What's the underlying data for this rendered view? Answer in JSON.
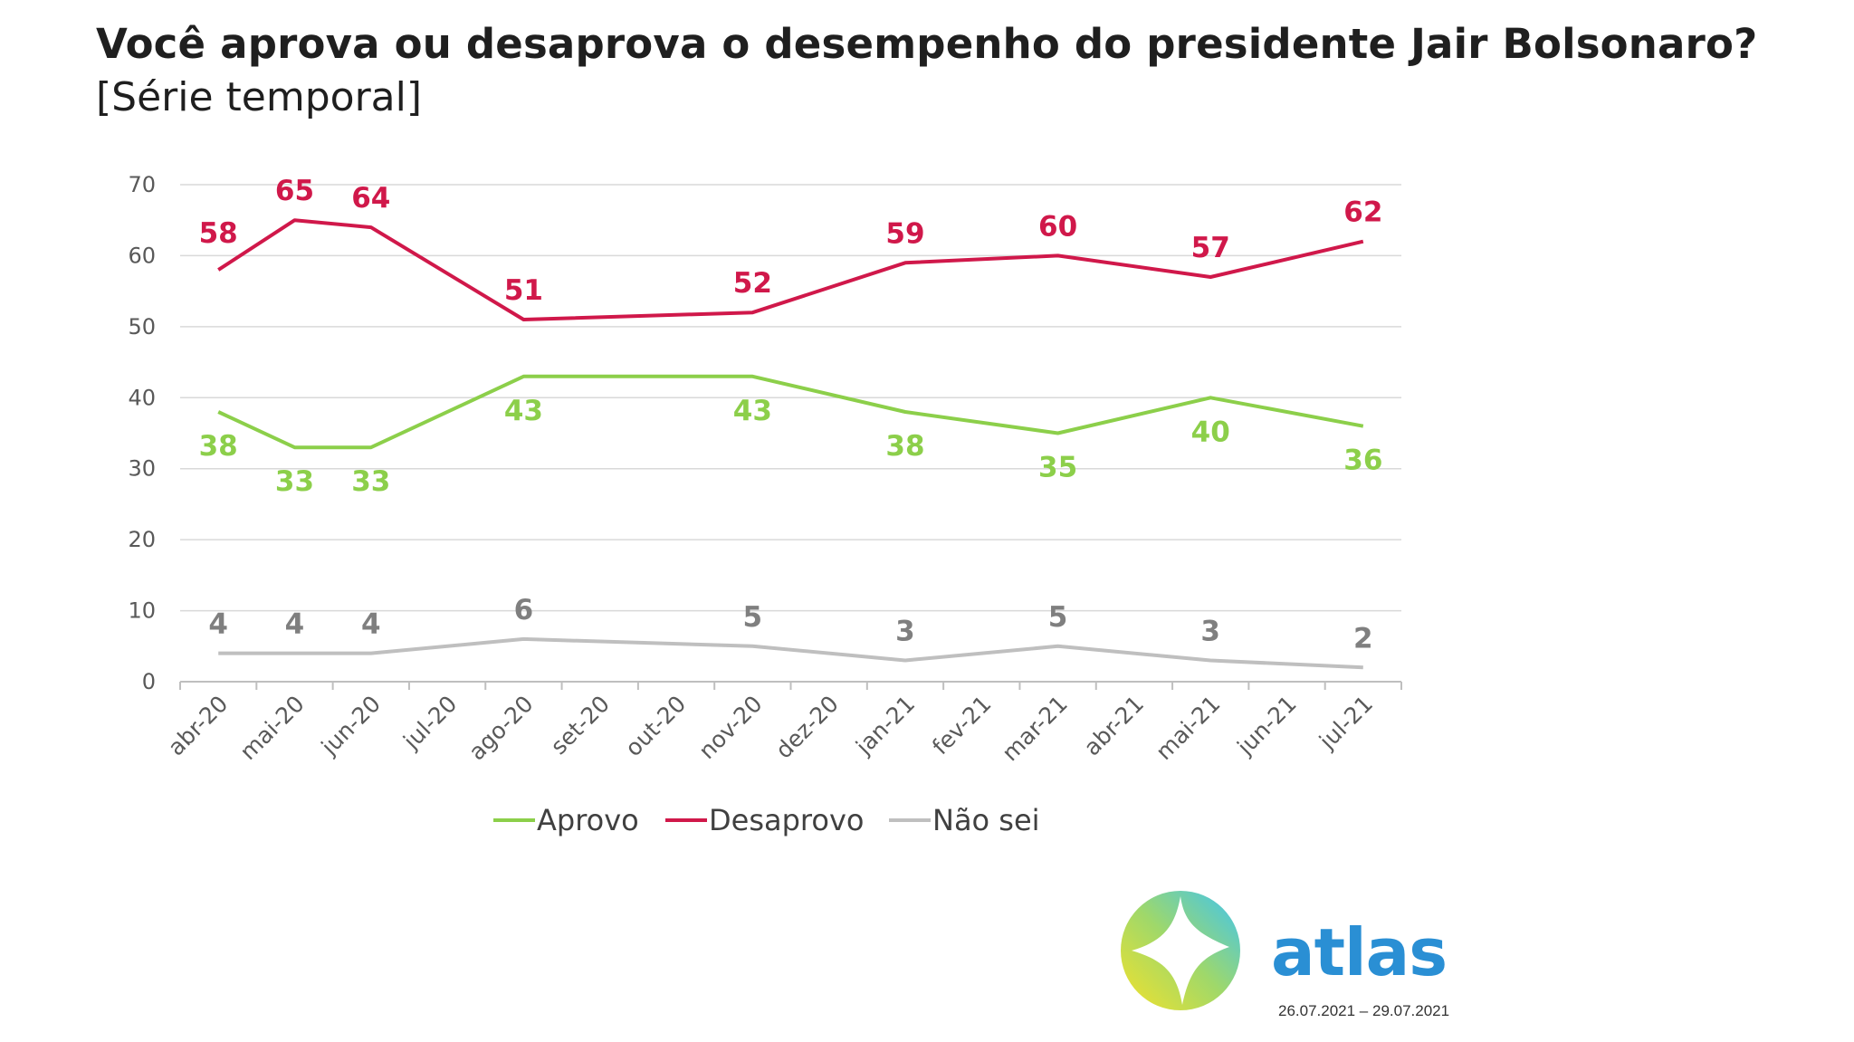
{
  "header": {
    "title": "Você aprova ou desaprova o desempenho do presidente Jair Bolsonaro?",
    "subtitle": "[Série temporal]"
  },
  "brand": {
    "name": "atlas",
    "dates": "26.07.2021 – 29.07.2021"
  },
  "chart_data": {
    "type": "line",
    "categories": [
      "abr-20",
      "mai-20",
      "jun-20",
      "jul-20",
      "ago-20",
      "set-20",
      "out-20",
      "nov-20",
      "dez-20",
      "jan-21",
      "fev-21",
      "mar-21",
      "abr-21",
      "mai-21",
      "jun-21",
      "jul-21"
    ],
    "ylim": [
      0,
      70
    ],
    "yticks": [
      0,
      10,
      20,
      30,
      40,
      50,
      60,
      70
    ],
    "grid": true,
    "legend_position": "bottom",
    "series": [
      {
        "name": "Aprovo",
        "color": "#8ccf4a",
        "values": [
          38,
          33,
          33,
          null,
          43,
          null,
          null,
          43,
          null,
          38,
          null,
          35,
          null,
          40,
          null,
          36
        ]
      },
      {
        "name": "Desaprovo",
        "color": "#d0184a",
        "values": [
          58,
          65,
          64,
          null,
          51,
          null,
          null,
          52,
          null,
          59,
          null,
          60,
          null,
          57,
          null,
          62
        ]
      },
      {
        "name": "Não sei",
        "color": "#bfbfbf",
        "values": [
          4,
          4,
          4,
          null,
          6,
          null,
          null,
          5,
          null,
          3,
          null,
          5,
          null,
          3,
          null,
          2
        ]
      }
    ]
  }
}
